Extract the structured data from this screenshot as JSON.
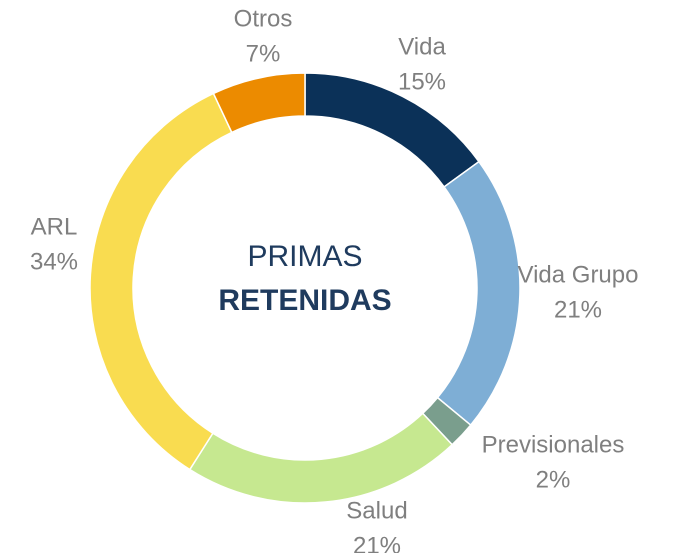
{
  "chart_data": {
    "type": "donut",
    "title": "PRIMAS",
    "subtitle": "RETENIDAS",
    "categories": [
      "Vida",
      "Vida Grupo",
      "Previsionales",
      "Salud",
      "ARL",
      "Otros"
    ],
    "values": [
      15,
      21,
      2,
      21,
      34,
      7
    ],
    "value_labels": [
      "15%",
      "21%",
      "2%",
      "21%",
      "34%",
      "7%"
    ],
    "colors": [
      "#0b3158",
      "#7eaed5",
      "#7a9e8d",
      "#c6e890",
      "#f9dc50",
      "#ec8b00"
    ]
  }
}
